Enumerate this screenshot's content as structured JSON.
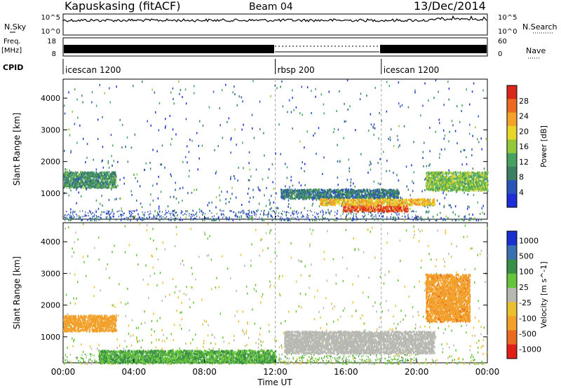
{
  "header": {
    "station": "Kapuskasing (fitACF)",
    "beam": "Beam 04",
    "date": "13/Dec/2014"
  },
  "labels": {
    "nsky": "N.Sky",
    "freq_l1": "Freq.",
    "freq_l2": "[MHz]",
    "cpid": "CPID",
    "nsearch": "N.Search",
    "nave": "Nave",
    "nsky_top": "10^5",
    "nsky_bottom": "10^0",
    "nsearch_top": "10^5",
    "nsearch_bottom": "10^0",
    "freq_top": "18",
    "freq_bottom": "8",
    "nave_top": "60",
    "nave_bottom": "0"
  },
  "cpid_segments": [
    {
      "label": "icescan 1200",
      "start_hr": 0,
      "end_hr": 12
    },
    {
      "label": "rbsp 200",
      "start_hr": 12,
      "end_hr": 18
    },
    {
      "label": "icescan 1200",
      "start_hr": 18,
      "end_hr": 24
    }
  ],
  "colors": {
    "power": [
      "#1f2fd8",
      "#2a55b8",
      "#3d7f62",
      "#47a160",
      "#93c83a",
      "#e8d62a",
      "#f3a32a",
      "#ec6a22",
      "#d8281c"
    ],
    "velocity": [
      "#1a2fd0",
      "#3a6fb0",
      "#3a8f48",
      "#66c43a",
      "#b8b8b2",
      "#e9c030",
      "#f2a02a",
      "#ea6a20",
      "#e02018"
    ]
  },
  "chart_data": [
    {
      "type": "heatmap",
      "panel": "power",
      "xlabel": "Time UT",
      "ylabel": "Slant Range [km]",
      "x_ticks": [
        "00:00",
        "04:00",
        "08:00",
        "12:00",
        "16:00",
        "20:00",
        "00:00"
      ],
      "y_ticks": [
        1000,
        2000,
        3000,
        4000
      ],
      "xlim_hours": [
        0,
        24
      ],
      "ylim_km": [
        180,
        4600
      ],
      "colorbar": {
        "label": "Power [dB]",
        "ticks": [
          "4",
          "8",
          "12",
          "16",
          "20",
          "24",
          "28"
        ],
        "range": [
          0,
          30
        ]
      },
      "features": [
        {
          "desc": "band",
          "t0": 0,
          "t1": 3,
          "r0": 1200,
          "r1": 1700,
          "value": 10
        },
        {
          "desc": "band",
          "t0": 12.3,
          "t1": 19,
          "r0": 850,
          "r1": 1150,
          "value": 8
        },
        {
          "desc": "strong echo",
          "t0": 15.8,
          "t1": 19.5,
          "r0": 450,
          "r1": 650,
          "value": 26
        },
        {
          "desc": "band",
          "t0": 14.5,
          "t1": 21,
          "r0": 650,
          "r1": 850,
          "value": 20
        },
        {
          "desc": "band",
          "t0": 20.5,
          "t1": 24,
          "r0": 1100,
          "r1": 1700,
          "value": 14
        }
      ]
    },
    {
      "type": "heatmap",
      "panel": "velocity",
      "xlabel": "Time UT",
      "ylabel": "Slant Range [km]",
      "x_ticks": [
        "00:00",
        "04:00",
        "08:00",
        "12:00",
        "16:00",
        "20:00",
        "00:00"
      ],
      "y_ticks": [
        1000,
        2000,
        3000,
        4000
      ],
      "xlim_hours": [
        0,
        24
      ],
      "ylim_km": [
        180,
        4600
      ],
      "colorbar": {
        "label": "Velocity [m s^-1]",
        "ticks": [
          "1000",
          "500",
          "100",
          "25",
          "-25",
          "-100",
          "-500",
          "-1000"
        ]
      },
      "features": [
        {
          "desc": "westward flow",
          "t0": 0,
          "t1": 3,
          "r0": 1200,
          "r1": 1700,
          "value": -200
        },
        {
          "desc": "ground scatter",
          "t0": 12.5,
          "t1": 21,
          "r0": 500,
          "r1": 1200,
          "value": 0
        },
        {
          "desc": "eastward flow",
          "t0": 2,
          "t1": 12,
          "r0": 200,
          "r1": 600,
          "value": 100
        },
        {
          "desc": "westward flow",
          "t0": 20.5,
          "t1": 23,
          "r0": 1500,
          "r1": 3000,
          "value": -400
        }
      ]
    }
  ]
}
